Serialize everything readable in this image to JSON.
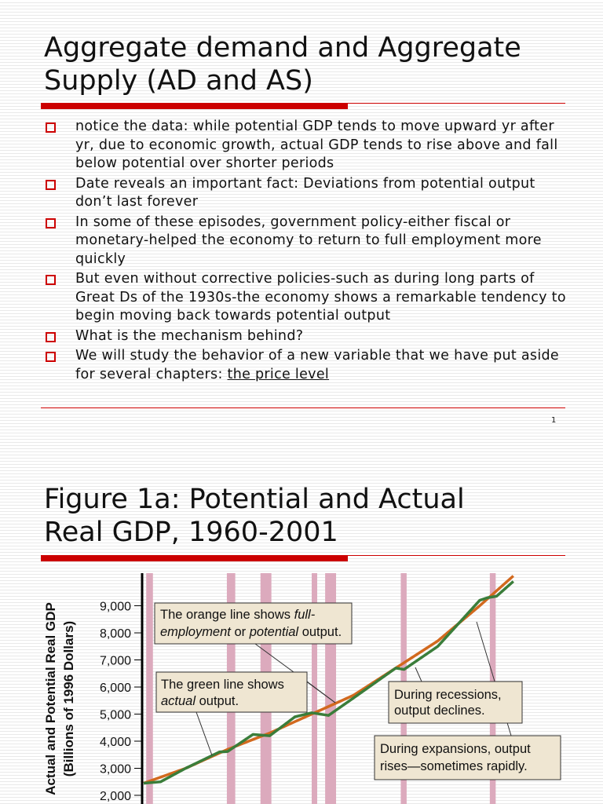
{
  "slide1": {
    "title_line1": "Aggregate demand and Aggregate",
    "title_line2": "Supply (AD and AS)",
    "bullets": [
      {
        "text": "notice the data: while potential GDP tends to move upward yr after yr, due to economic growth, actual GDP tends to rise above and fall below potential over shorter periods"
      },
      {
        "text": "Date reveals an important fact: Deviations from potential output don’t last forever"
      },
      {
        "text": "In some of these episodes, government policy-either fiscal or monetary-helped the economy to return to full employment more quickly"
      },
      {
        "text": "But even without corrective policies-such as during long parts of Great Ds of the 1930s-the economy shows a remarkable tendency  to begin moving back towards potential output"
      },
      {
        "text": "What is the mechanism behind?"
      },
      {
        "text": "We will study the behavior of a new variable that we have put aside for several chapters: ",
        "link": "the price level"
      }
    ],
    "page_number": "1",
    "bullet_icon": "hollow-square",
    "accent_color": "#cc0000"
  },
  "slide2": {
    "title_line1": "Figure 1a:  Potential and Actual",
    "title_line2": "Real GDP, 1960-2001"
  },
  "chart_data": {
    "type": "line",
    "ylabel_line1": "Actual and Potential Real GDP",
    "ylabel_line2": "(Billions of 1996 Dollars)",
    "yticks": [
      2000,
      3000,
      4000,
      5000,
      6000,
      7000,
      8000,
      9000
    ],
    "ytick_labels": [
      "2,000",
      "3,000",
      "4,000",
      "5,000",
      "6,000",
      "7,000",
      "8,000",
      "9,000"
    ],
    "xrange": [
      1960,
      2004
    ],
    "grid": false,
    "recessions": [
      [
        1960.3,
        1961.1
      ],
      [
        1969.9,
        1970.9
      ],
      [
        1973.9,
        1975.2
      ],
      [
        1980.0,
        1980.6
      ],
      [
        1981.6,
        1982.9
      ],
      [
        1990.6,
        1991.3
      ],
      [
        2001.2,
        2001.9
      ]
    ],
    "recession_color": "#dcaabd",
    "series": [
      {
        "key": "potential",
        "color": "#d2691e",
        "x": [
          1960,
          1965,
          1970,
          1975,
          1980,
          1985,
          1990,
          1995,
          2000,
          2004
        ],
        "y": [
          2450,
          3000,
          3700,
          4300,
          5000,
          5700,
          6700,
          7700,
          9000,
          10100
        ]
      },
      {
        "key": "actual",
        "color": "#3a7d3a",
        "x": [
          1960,
          1962,
          1965,
          1969,
          1970,
          1973,
          1975,
          1978,
          1980,
          1982,
          1985,
          1990,
          1991,
          1995,
          2000,
          2001,
          2002,
          2004
        ],
        "y": [
          2450,
          2500,
          3000,
          3600,
          3620,
          4250,
          4200,
          4900,
          5050,
          4950,
          5600,
          6700,
          6650,
          7500,
          9200,
          9300,
          9350,
          9900
        ]
      }
    ],
    "annotations": {
      "orange": {
        "l1a": "The orange line shows ",
        "l1b": "full-",
        "l2a": "employment",
        "l2b": " or ",
        "l2c": "potential",
        "l2d": " output."
      },
      "green": {
        "l1": "The green line shows",
        "l2a": "actual",
        "l2b": " output."
      },
      "recession": {
        "l1": "During recessions,",
        "l2": "output declines."
      },
      "expansion": {
        "l1": "During expansions, output",
        "l2": "rises—sometimes rapidly."
      }
    },
    "annotation_fill": "#efe6d2"
  }
}
